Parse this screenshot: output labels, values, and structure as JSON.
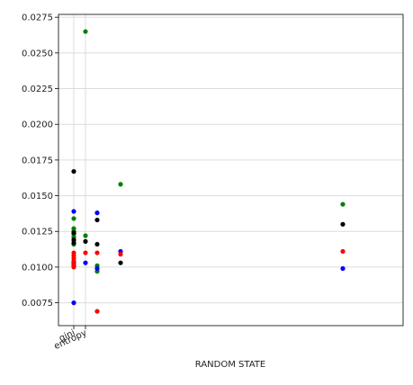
{
  "chart_data": {
    "type": "scatter",
    "title": "",
    "xlabel": "RANDOM STATE",
    "ylabel": "",
    "ylim": [
      0.0059,
      0.0277
    ],
    "y_ticks": [
      "0.0075",
      "0.0100",
      "0.0125",
      "0.0150",
      "0.0175",
      "0.0200",
      "0.0225",
      "0.0250",
      "0.0275"
    ],
    "x_ticks": [
      "gini",
      "entropy"
    ],
    "grid": true,
    "legend": "none",
    "series": [
      {
        "color": "#008000",
        "points": [
          {
            "x": 1,
            "y": 0.0121
          },
          {
            "x": 1,
            "y": 0.0123
          },
          {
            "x": 1,
            "y": 0.0125
          },
          {
            "x": 1,
            "y": 0.0127
          },
          {
            "x": 1,
            "y": 0.0134
          },
          {
            "x": 1,
            "y": 0.0116
          },
          {
            "x": 2,
            "y": 0.0265
          },
          {
            "x": 2,
            "y": 0.0122
          },
          {
            "x": 3,
            "y": 0.0097
          },
          {
            "x": 3,
            "y": 0.0101
          },
          {
            "x": 5,
            "y": 0.0158
          },
          {
            "x": 24,
            "y": 0.0144
          }
        ]
      },
      {
        "color": "#000000",
        "points": [
          {
            "x": 1,
            "y": 0.0167
          },
          {
            "x": 1,
            "y": 0.0124
          },
          {
            "x": 1,
            "y": 0.0119
          },
          {
            "x": 1,
            "y": 0.0117
          },
          {
            "x": 2,
            "y": 0.0118
          },
          {
            "x": 3,
            "y": 0.0133
          },
          {
            "x": 3,
            "y": 0.0116
          },
          {
            "x": 5,
            "y": 0.0103
          },
          {
            "x": 24,
            "y": 0.013
          }
        ]
      },
      {
        "color": "#0000ff",
        "points": [
          {
            "x": 1,
            "y": 0.0139
          },
          {
            "x": 1,
            "y": 0.0103
          },
          {
            "x": 1,
            "y": 0.0101
          },
          {
            "x": 1,
            "y": 0.0075
          },
          {
            "x": 2,
            "y": 0.0103
          },
          {
            "x": 3,
            "y": 0.0138
          },
          {
            "x": 3,
            "y": 0.0099
          },
          {
            "x": 5,
            "y": 0.0111
          },
          {
            "x": 24,
            "y": 0.0099
          }
        ]
      },
      {
        "color": "#ff0000",
        "points": [
          {
            "x": 1,
            "y": 0.011
          },
          {
            "x": 1,
            "y": 0.0108
          },
          {
            "x": 1,
            "y": 0.0106
          },
          {
            "x": 1,
            "y": 0.0104
          },
          {
            "x": 1,
            "y": 0.0102
          },
          {
            "x": 1,
            "y": 0.01
          },
          {
            "x": 2,
            "y": 0.011
          },
          {
            "x": 3,
            "y": 0.011
          },
          {
            "x": 3,
            "y": 0.0069
          },
          {
            "x": 5,
            "y": 0.0109
          },
          {
            "x": 24,
            "y": 0.0111
          }
        ]
      }
    ]
  }
}
